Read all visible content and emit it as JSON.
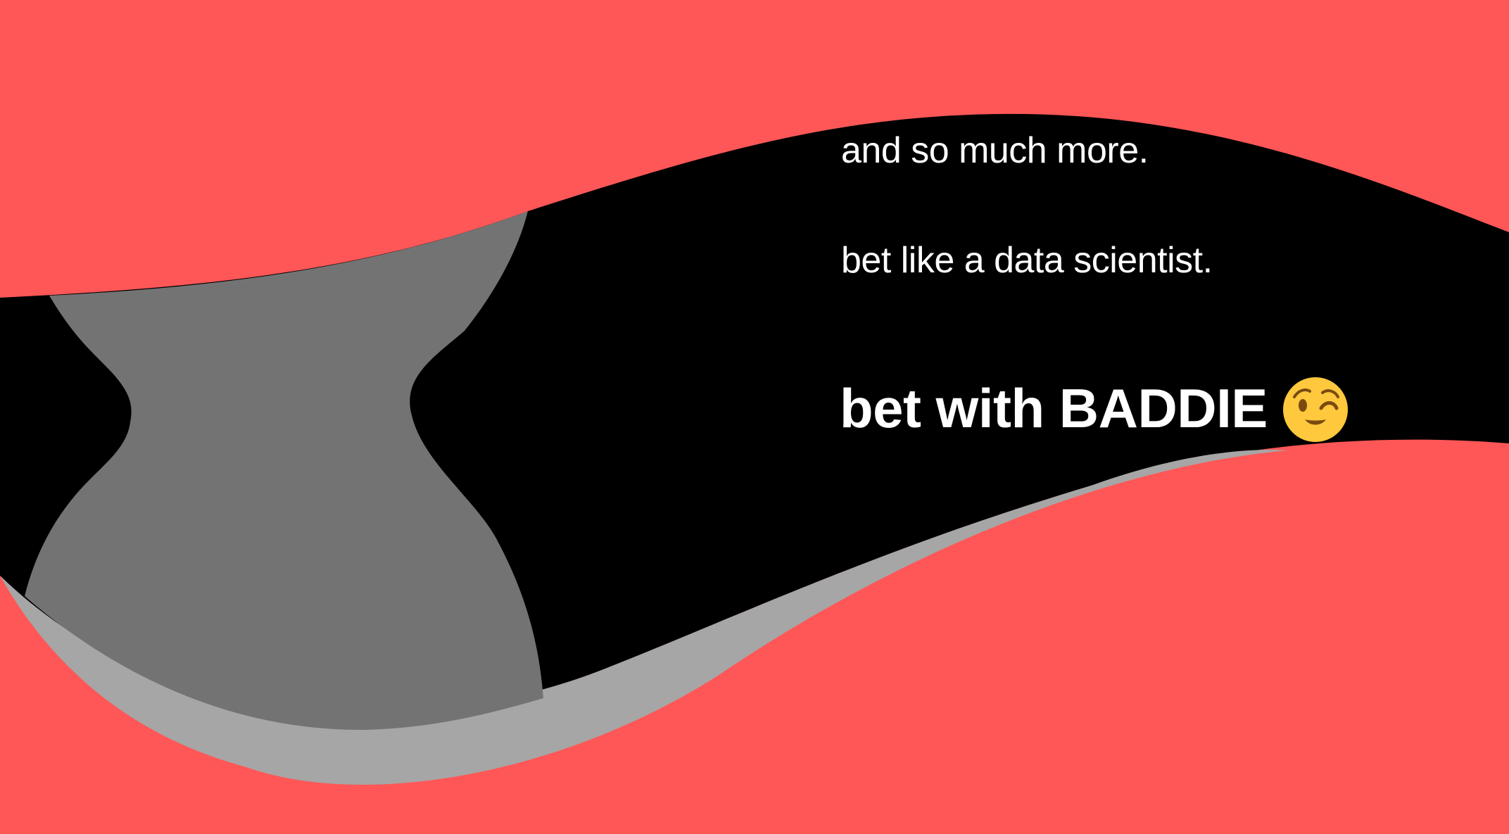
{
  "copy": {
    "line_1": "and so much more.",
    "line_2": "bet like a data scientist.",
    "cta": "bet with BADDIE"
  },
  "icons": {
    "cta_emoji": "winking-face-icon"
  },
  "colors": {
    "background": "#ff5757",
    "band": "#000000",
    "shape_dark_gray": "#737373",
    "shape_light_gray": "#a6a6a6",
    "text": "#ffffff",
    "emoji_face": "#ffc83d",
    "emoji_features": "#7a4a10"
  }
}
